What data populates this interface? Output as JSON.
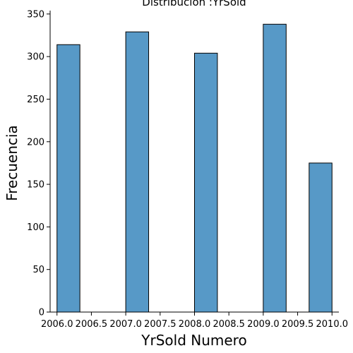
{
  "chart_data": {
    "type": "bar",
    "title": "Distribución :YrSold",
    "xlabel": "YrSold Numero",
    "ylabel": "Frecuencia",
    "xlim": [
      2005.9,
      2010.1
    ],
    "ylim": [
      0,
      354
    ],
    "bins": [
      {
        "x0": 2006.0,
        "x1": 2006.333,
        "value": 314
      },
      {
        "x0": 2006.333,
        "x1": 2006.667,
        "value": 0
      },
      {
        "x0": 2006.667,
        "x1": 2007.0,
        "value": 0
      },
      {
        "x0": 2007.0,
        "x1": 2007.333,
        "value": 329
      },
      {
        "x0": 2007.333,
        "x1": 2007.667,
        "value": 0
      },
      {
        "x0": 2007.667,
        "x1": 2008.0,
        "value": 0
      },
      {
        "x0": 2008.0,
        "x1": 2008.333,
        "value": 304
      },
      {
        "x0": 2008.333,
        "x1": 2008.667,
        "value": 0
      },
      {
        "x0": 2008.667,
        "x1": 2009.0,
        "value": 0
      },
      {
        "x0": 2009.0,
        "x1": 2009.333,
        "value": 338
      },
      {
        "x0": 2009.333,
        "x1": 2009.667,
        "value": 0
      },
      {
        "x0": 2009.667,
        "x1": 2010.0,
        "value": 175
      }
    ],
    "x_ticks": [
      2006.0,
      2006.5,
      2007.0,
      2007.5,
      2008.0,
      2008.5,
      2009.0,
      2009.5,
      2010.0
    ],
    "x_tick_labels": [
      "2006.0",
      "2006.5",
      "2007.0",
      "2007.5",
      "2008.0",
      "2008.5",
      "2009.0",
      "2009.5",
      "2010.0"
    ],
    "y_ticks": [
      0,
      50,
      100,
      150,
      200,
      250,
      300,
      350
    ],
    "y_tick_labels": [
      "0",
      "50",
      "100",
      "150",
      "200",
      "250",
      "300",
      "350"
    ],
    "grid": false,
    "bar_color": "#5799c7",
    "edge_color": "#000000"
  }
}
